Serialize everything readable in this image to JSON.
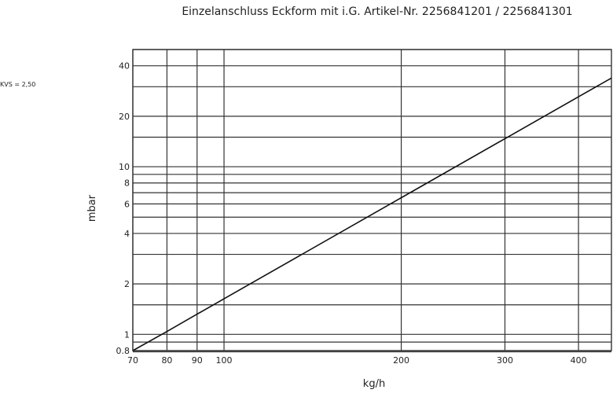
{
  "chart_data": {
    "type": "line",
    "title": "Einzelanschluss Eckform mit i.G. Artikel-Nr. 2256841201 / 2256841301",
    "annotation": "KVS = 2,50",
    "xlabel": "kg/h",
    "ylabel": "mbar",
    "xscale": "log",
    "yscale": "log",
    "xlim": [
      70,
      455
    ],
    "ylim": [
      0.8,
      50
    ],
    "grid": true,
    "x_ticks": [
      70,
      80,
      90,
      100,
      200,
      300,
      400
    ],
    "x_tick_labels": [
      "70",
      "80",
      "90",
      "100",
      "200",
      "300",
      "400"
    ],
    "x_gridlines": [
      70,
      80,
      90,
      100,
      200,
      300,
      400
    ],
    "y_ticks": [
      0.8,
      1,
      2,
      4,
      6,
      8,
      10,
      20,
      40
    ],
    "y_tick_labels": [
      "0.8",
      "1",
      "2",
      "4",
      "6",
      "8",
      "10",
      "20",
      "40"
    ],
    "y_gridlines": [
      0.8,
      0.9,
      1,
      1.5,
      2,
      3,
      4,
      5,
      6,
      7,
      8,
      9,
      10,
      15,
      20,
      30,
      40,
      50
    ],
    "series": [
      {
        "x": [
          70,
          80,
          90,
          100,
          200,
          300,
          400,
          455
        ],
        "y": [
          0.8,
          1.04,
          1.32,
          1.63,
          6.53,
          14.69,
          26.12,
          33.8
        ],
        "color": "#111111"
      }
    ]
  }
}
